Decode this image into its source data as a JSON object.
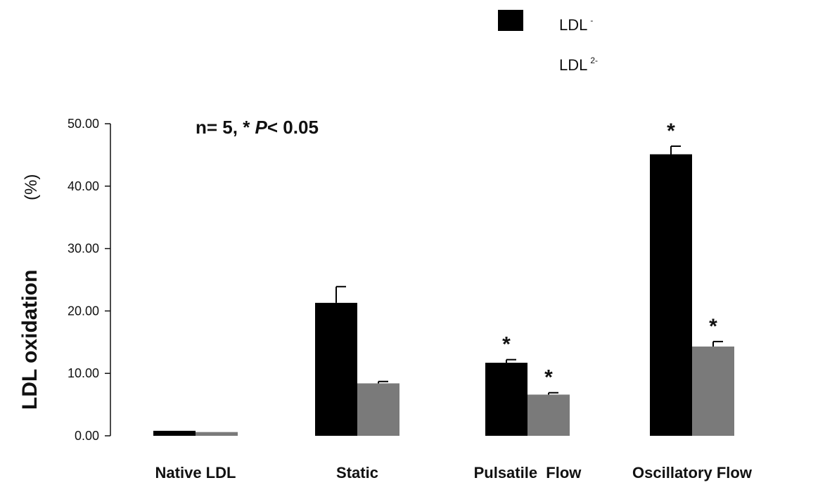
{
  "chart_data": {
    "type": "bar",
    "categories": [
      "Native LDL",
      "Static",
      "Pulsatile  Flow",
      "Oscillatory Flow"
    ],
    "series": [
      {
        "name": "LDL",
        "name_sup": "-",
        "color": "#000000",
        "values": [
          0.8,
          21.3,
          11.7,
          45.1
        ],
        "errors": [
          0.0,
          2.6,
          0.5,
          1.3
        ],
        "significant": [
          false,
          false,
          true,
          true
        ]
      },
      {
        "name": "LDL",
        "name_sup": "2-",
        "color": "#7a7a7a",
        "values": [
          0.6,
          8.4,
          6.6,
          14.3
        ],
        "errors": [
          0.0,
          0.3,
          0.3,
          0.8
        ],
        "significant": [
          false,
          false,
          true,
          true
        ]
      }
    ],
    "ylabel": "LDL oxidation",
    "ylabel_unit": "(%)",
    "ylim": [
      0,
      50
    ],
    "yticks": [
      "0.00",
      "10.00",
      "20.00",
      "30.00",
      "40.00",
      "50.00"
    ],
    "annotation": {
      "prefix": "n= 5,  * ",
      "p": "P",
      "suffix": "< 0.05"
    },
    "significance_marker": "*",
    "legend_position": "top-right",
    "grid": false
  }
}
